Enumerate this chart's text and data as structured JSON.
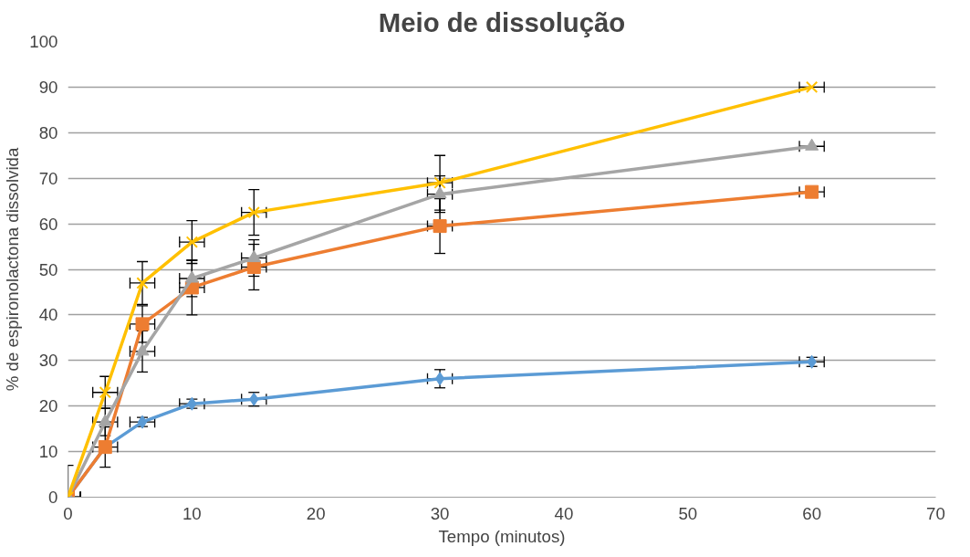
{
  "chart_data": {
    "type": "line",
    "title": "Meio de dissolução",
    "xlabel": "Tempo (minutos)",
    "ylabel": "% de espironolactona dissolvida",
    "x": [
      0,
      3,
      6,
      10,
      15,
      30,
      60
    ],
    "xlim": [
      0,
      70
    ],
    "xticks": [
      0,
      10,
      20,
      30,
      40,
      50,
      60,
      70
    ],
    "ylim": [
      0,
      100
    ],
    "yticks": [
      0,
      10,
      20,
      30,
      40,
      50,
      60,
      70,
      80,
      90,
      100
    ],
    "grid": "y",
    "series": [
      {
        "color": "#5b9bd5",
        "marker": "diamond",
        "values": [
          0,
          11,
          16.5,
          20.5,
          21.5,
          26,
          29.7
        ],
        "errors": [
          null,
          null,
          1,
          1,
          1.5,
          2,
          1
        ],
        "xerrors": [
          1,
          null,
          1,
          1,
          1,
          1,
          1
        ]
      },
      {
        "color": "#ed7d31",
        "marker": "square",
        "values": [
          0,
          11,
          38,
          46,
          50.5,
          59.5,
          67
        ],
        "errors": [
          null,
          4.4,
          4,
          6,
          5,
          6,
          null
        ],
        "xerrors": [
          1,
          1,
          1,
          1,
          1,
          1,
          1
        ]
      },
      {
        "color": "#a5a5a5",
        "marker": "triangle",
        "values": [
          0,
          16.5,
          32,
          48,
          52.5,
          66.5,
          77
        ],
        "errors": [
          null,
          3,
          4.5,
          4,
          4,
          4,
          null
        ],
        "xerrors": [
          1,
          1,
          1,
          1,
          1,
          1,
          1
        ]
      },
      {
        "color": "#ffc000",
        "marker": "cross",
        "values": [
          0,
          23,
          47,
          56,
          62.5,
          69,
          90
        ],
        "errors": [
          7,
          3.5,
          4.7,
          4.7,
          5,
          6,
          null
        ],
        "xerrors": [
          1,
          1,
          1,
          1,
          1,
          1,
          1
        ]
      }
    ]
  }
}
